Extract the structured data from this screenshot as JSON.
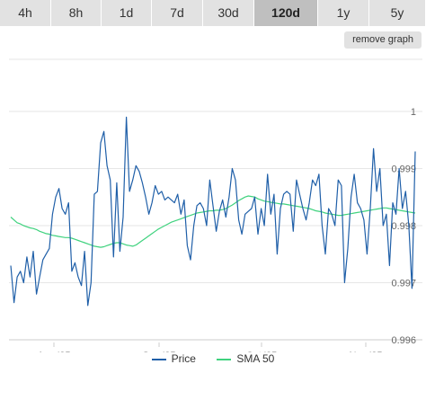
{
  "tabs": [
    {
      "label": "4h",
      "active": false
    },
    {
      "label": "8h",
      "active": false
    },
    {
      "label": "1d",
      "active": false
    },
    {
      "label": "7d",
      "active": false
    },
    {
      "label": "30d",
      "active": false
    },
    {
      "label": "120d",
      "active": true
    },
    {
      "label": "1y",
      "active": false
    },
    {
      "label": "5y",
      "active": false
    }
  ],
  "remove_graph_label": "remove graph",
  "chart_data": {
    "type": "line",
    "x_ticks": [
      "Aug '25",
      "Sep '25",
      "Oct '25",
      "Nov '25"
    ],
    "y_ticks": [
      "1",
      "0.999",
      "0.998",
      "0.997",
      "0.996"
    ],
    "ylim": [
      0.996,
      1.0
    ],
    "grid": true,
    "legend_position": "bottom-center",
    "series": [
      {
        "name": "Price",
        "color": "#1f5fa8",
        "values": [
          0.9973,
          0.99665,
          0.9971,
          0.9972,
          0.997,
          0.99745,
          0.9971,
          0.99755,
          0.9968,
          0.9971,
          0.9974,
          0.9975,
          0.9976,
          0.9982,
          0.9985,
          0.99865,
          0.9983,
          0.9982,
          0.9984,
          0.9972,
          0.99735,
          0.9971,
          0.99695,
          0.99755,
          0.9966,
          0.997,
          0.99855,
          0.9986,
          0.99945,
          0.99965,
          0.99905,
          0.9988,
          0.99745,
          0.99875,
          0.99755,
          0.99815,
          0.9999,
          0.9986,
          0.9988,
          0.99905,
          0.99895,
          0.99875,
          0.9985,
          0.9982,
          0.9984,
          0.9987,
          0.99855,
          0.9986,
          0.99845,
          0.9985,
          0.99845,
          0.9984,
          0.99855,
          0.9982,
          0.99845,
          0.99765,
          0.9974,
          0.998,
          0.99835,
          0.9984,
          0.9983,
          0.998,
          0.9988,
          0.99835,
          0.9979,
          0.99825,
          0.99845,
          0.99815,
          0.9985,
          0.999,
          0.9988,
          0.9981,
          0.99785,
          0.9982,
          0.99825,
          0.9983,
          0.9985,
          0.99785,
          0.9983,
          0.998,
          0.9989,
          0.9982,
          0.99855,
          0.9975,
          0.9983,
          0.99855,
          0.9986,
          0.99855,
          0.9979,
          0.9988,
          0.99855,
          0.9983,
          0.9981,
          0.9984,
          0.9988,
          0.9987,
          0.9989,
          0.998,
          0.9975,
          0.9983,
          0.9982,
          0.998,
          0.9988,
          0.9987,
          0.997,
          0.9976,
          0.9985,
          0.9989,
          0.9984,
          0.9983,
          0.9981,
          0.9975,
          0.9983,
          0.99935,
          0.9986,
          0.999,
          0.998,
          0.9982,
          0.9973,
          0.9984,
          0.9982,
          0.999,
          0.9983,
          0.9986,
          0.998,
          0.9969,
          0.9993
        ]
      },
      {
        "name": "SMA 50",
        "color": "#3fd27e",
        "values": [
          0.99815,
          0.9981,
          0.99805,
          0.99803,
          0.998,
          0.99798,
          0.99796,
          0.99795,
          0.99793,
          0.9979,
          0.99788,
          0.99786,
          0.99785,
          0.99783,
          0.99782,
          0.99781,
          0.9978,
          0.99779,
          0.99779,
          0.99778,
          0.99776,
          0.99774,
          0.99772,
          0.9977,
          0.99768,
          0.99766,
          0.99764,
          0.99763,
          0.99762,
          0.99763,
          0.99765,
          0.99767,
          0.99769,
          0.9977,
          0.9977,
          0.99768,
          0.99766,
          0.99765,
          0.99764,
          0.99766,
          0.9977,
          0.99774,
          0.99778,
          0.99782,
          0.99786,
          0.9979,
          0.99794,
          0.99797,
          0.998,
          0.99803,
          0.99806,
          0.99808,
          0.9981,
          0.99812,
          0.99814,
          0.99816,
          0.99818,
          0.9982,
          0.99822,
          0.99823,
          0.99824,
          0.99825,
          0.99826,
          0.99826,
          0.99827,
          0.99827,
          0.99828,
          0.9983,
          0.99833,
          0.99836,
          0.9984,
          0.99844,
          0.99847,
          0.9985,
          0.99852,
          0.99851,
          0.9985,
          0.99847,
          0.99845,
          0.99843,
          0.99842,
          0.99841,
          0.9984,
          0.99839,
          0.99838,
          0.99838,
          0.99837,
          0.99836,
          0.99835,
          0.99834,
          0.99833,
          0.99832,
          0.99831,
          0.9983,
          0.99828,
          0.99826,
          0.99825,
          0.99824,
          0.99822,
          0.99821,
          0.9982,
          0.99819,
          0.99818,
          0.99818,
          0.99819,
          0.9982,
          0.99821,
          0.99822,
          0.99823,
          0.99824,
          0.99825,
          0.99826,
          0.99827,
          0.99828,
          0.99829,
          0.9983,
          0.99831,
          0.99831,
          0.9983,
          0.99829,
          0.99828,
          0.99827,
          0.99826,
          0.99825,
          0.99824,
          0.99823,
          0.99822
        ]
      }
    ]
  }
}
